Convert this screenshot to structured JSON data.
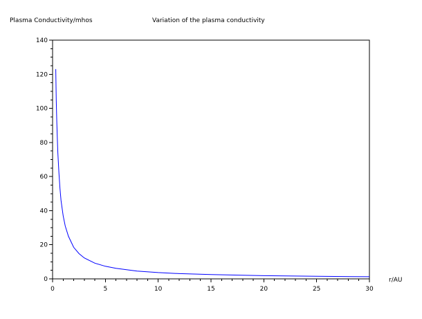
{
  "chart_data": {
    "type": "line",
    "title": "Variation of the plasma conductivity",
    "ylabel": "Plasma Conductivity/mhos",
    "xlabel": "r/AU",
    "xlim": [
      0,
      30
    ],
    "ylim": [
      0,
      140
    ],
    "xticks": [
      0,
      5,
      10,
      15,
      20,
      25,
      30
    ],
    "yticks": [
      0,
      20,
      40,
      60,
      80,
      100,
      120,
      140
    ],
    "grid": false,
    "series": [
      {
        "color": "#0000ff",
        "x": [
          0.3,
          0.35,
          0.4,
          0.45,
          0.5,
          0.6,
          0.7,
          0.8,
          1.0,
          1.2,
          1.5,
          2.0,
          2.5,
          3.0,
          4.0,
          5.0,
          6.0,
          8.0,
          10.0,
          12.0,
          15.0,
          18.0,
          20.0,
          25.0,
          30.0
        ],
        "y": [
          123,
          105,
          92,
          82,
          74,
          62,
          53,
          46,
          37,
          31,
          25,
          18.5,
          14.8,
          12.3,
          9.2,
          7.4,
          6.2,
          4.6,
          3.7,
          3.1,
          2.5,
          2.1,
          1.85,
          1.5,
          1.25
        ]
      }
    ]
  }
}
